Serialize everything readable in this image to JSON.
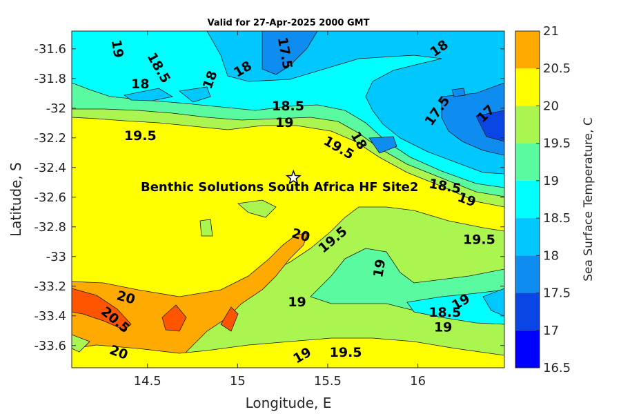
{
  "chart_data": {
    "type": "contour",
    "title": "Valid for 27-Apr-2025 2000 GMT",
    "xlabel": "Longitude, E",
    "ylabel": "Latitude, S",
    "colorbar_label": "Sea Surface Temperature, C",
    "xlim": [
      14.08,
      16.48
    ],
    "ylim": [
      -33.75,
      -31.48
    ],
    "x_ticks": [
      14.5,
      15,
      15.5,
      16
    ],
    "x_tick_labels": [
      "14.5",
      "15",
      "15.5",
      "16"
    ],
    "y_ticks": [
      -31.6,
      -31.8,
      -32,
      -32.2,
      -32.4,
      -32.6,
      -32.8,
      -33,
      -33.2,
      -33.4,
      -33.6
    ],
    "y_tick_labels": [
      "-31.6",
      "-31.8",
      "-32",
      "-32.2",
      "-32.4",
      "-32.6",
      "-32.8",
      "-33",
      "-33.2",
      "-33.4",
      "-33.6"
    ],
    "levels": [
      16.5,
      17,
      17.5,
      18,
      18.5,
      19,
      19.5,
      20,
      20.5,
      21
    ],
    "level_labels": [
      "16.5",
      "17",
      "17.5",
      "18",
      "18.5",
      "19",
      "19.5",
      "20",
      "20.5",
      "21"
    ],
    "level_colors": [
      "#0000ff",
      "#0a46e6",
      "#0f8cf0",
      "#00c8ff",
      "#00ffff",
      "#5afaa0",
      "#aaf550",
      "#ffff00",
      "#ffaa00",
      "#ff5500"
    ],
    "site": {
      "name": "Benthic Solutions South Africa HF Site2",
      "lon": 15.31,
      "lat": -32.47
    },
    "contour_labels": [
      {
        "text": "19",
        "lon": 14.33,
        "lat": -31.6,
        "rot": 80
      },
      {
        "text": "18.5",
        "lon": 14.56,
        "lat": -31.73,
        "rot": 60
      },
      {
        "text": "18",
        "lon": 14.46,
        "lat": -31.84,
        "rot": 0
      },
      {
        "text": "18",
        "lon": 14.85,
        "lat": -31.81,
        "rot": -70
      },
      {
        "text": "18",
        "lon": 15.03,
        "lat": -31.74,
        "rot": -30
      },
      {
        "text": "17.5",
        "lon": 15.26,
        "lat": -31.63,
        "rot": 80
      },
      {
        "text": "18",
        "lon": 16.12,
        "lat": -31.6,
        "rot": -35
      },
      {
        "text": "18.5",
        "lon": 15.28,
        "lat": -31.99,
        "rot": 0
      },
      {
        "text": "19",
        "lon": 15.26,
        "lat": -32.1,
        "rot": 0
      },
      {
        "text": "19.5",
        "lon": 14.46,
        "lat": -32.19,
        "rot": 0
      },
      {
        "text": "19.5",
        "lon": 15.56,
        "lat": -32.27,
        "rot": 30
      },
      {
        "text": "18",
        "lon": 15.67,
        "lat": -32.22,
        "rot": 60
      },
      {
        "text": "17.5",
        "lon": 16.11,
        "lat": -32.02,
        "rot": -55
      },
      {
        "text": "17",
        "lon": 16.38,
        "lat": -32.04,
        "rot": -45
      },
      {
        "text": "18.5",
        "lon": 16.15,
        "lat": -32.53,
        "rot": 10
      },
      {
        "text": "19",
        "lon": 16.27,
        "lat": -32.62,
        "rot": 20
      },
      {
        "text": "20",
        "lon": 15.35,
        "lat": -32.86,
        "rot": 15
      },
      {
        "text": "19.5",
        "lon": 15.53,
        "lat": -32.89,
        "rot": -40
      },
      {
        "text": "19.5",
        "lon": 16.34,
        "lat": -32.89,
        "rot": 0
      },
      {
        "text": "19",
        "lon": 15.79,
        "lat": -33.08,
        "rot": -80
      },
      {
        "text": "20",
        "lon": 14.38,
        "lat": -33.28,
        "rot": 15
      },
      {
        "text": "20.5",
        "lon": 14.32,
        "lat": -33.43,
        "rot": 40
      },
      {
        "text": "19",
        "lon": 15.33,
        "lat": -33.31,
        "rot": 0
      },
      {
        "text": "18.5",
        "lon": 16.15,
        "lat": -33.38,
        "rot": 0
      },
      {
        "text": "19",
        "lon": 16.24,
        "lat": -33.31,
        "rot": -30
      },
      {
        "text": "19",
        "lon": 16.14,
        "lat": -33.48,
        "rot": 0
      },
      {
        "text": "20",
        "lon": 14.34,
        "lat": -33.65,
        "rot": 20
      },
      {
        "text": "19",
        "lon": 15.36,
        "lat": -33.67,
        "rot": -30
      },
      {
        "text": "19.5",
        "lon": 15.6,
        "lat": -33.65,
        "rot": 0
      }
    ]
  }
}
